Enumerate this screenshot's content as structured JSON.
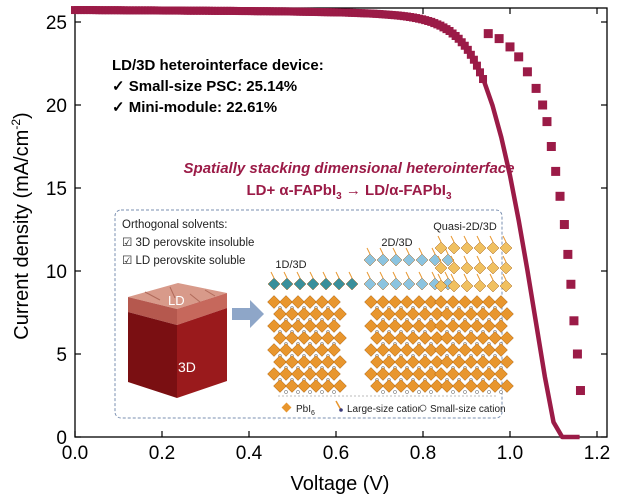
{
  "chart_data": {
    "type": "line",
    "title": "",
    "xlabel": "Voltage (V)",
    "ylabel": "Current density (mA/cm",
    "ylabel_sup": "-2",
    "ylabel_end": ")",
    "xlim": [
      0.0,
      1.22
    ],
    "ylim": [
      0,
      25.9
    ],
    "xticks": [
      "0.0",
      "0.2",
      "0.4",
      "0.6",
      "0.8",
      "1.0",
      "1.2"
    ],
    "xtick_values": [
      0.0,
      0.2,
      0.4,
      0.6,
      0.8,
      1.0,
      1.2
    ],
    "yticks": [
      "0",
      "5",
      "10",
      "15",
      "20",
      "25"
    ],
    "ytick_values": [
      0,
      5,
      10,
      15,
      20,
      25
    ],
    "grid": false,
    "series": [
      {
        "name": "LD/3D heterointerface device",
        "color": "#9b1b47",
        "marker": "square",
        "x": [
          0.0,
          0.02,
          0.04,
          0.06,
          0.08,
          0.1,
          0.12,
          0.14,
          0.16,
          0.18,
          0.2,
          0.22,
          0.24,
          0.26,
          0.28,
          0.3,
          0.32,
          0.34,
          0.36,
          0.38,
          0.4,
          0.42,
          0.44,
          0.46,
          0.48,
          0.5,
          0.52,
          0.54,
          0.56,
          0.58,
          0.6,
          0.62,
          0.64,
          0.66,
          0.68,
          0.7,
          0.72,
          0.74,
          0.76,
          0.78,
          0.8,
          0.82,
          0.84,
          0.86,
          0.88,
          0.9,
          0.92,
          0.94,
          0.96,
          0.98,
          1.0,
          1.02,
          1.04,
          1.06,
          1.08,
          1.1,
          1.12,
          1.13,
          1.14,
          1.15,
          1.16
        ],
        "y": [
          25.72,
          25.72,
          25.72,
          25.71,
          25.71,
          25.71,
          25.7,
          25.7,
          25.7,
          25.7,
          25.69,
          25.69,
          25.69,
          25.68,
          25.68,
          25.68,
          25.67,
          25.67,
          25.67,
          25.66,
          25.66,
          25.65,
          25.65,
          25.64,
          25.64,
          25.63,
          25.62,
          25.61,
          25.6,
          25.59,
          25.58,
          25.57,
          25.55,
          25.53,
          25.51,
          25.48,
          25.44,
          25.4,
          25.34,
          25.26,
          25.15,
          25.0,
          24.78,
          24.48,
          24.05,
          23.45,
          22.6,
          21.45,
          19.95,
          18.05,
          15.75,
          13.05,
          10.05,
          6.85,
          3.65,
          0.9,
          0.0,
          0.0,
          0.0,
          0.0,
          0.0
        ],
        "marker_x": [
          0.95,
          0.975,
          1.0,
          1.02,
          1.04,
          1.06,
          1.075,
          1.085,
          1.095,
          1.105,
          1.115,
          1.125,
          1.133,
          1.14,
          1.147,
          1.155,
          1.162
        ],
        "marker_y": [
          24.3,
          24.0,
          23.5,
          22.9,
          22.0,
          21.0,
          20.0,
          19.0,
          17.5,
          16.0,
          14.5,
          12.8,
          11.0,
          9.2,
          7.0,
          5.0,
          2.8
        ]
      }
    ],
    "annotations": {
      "device_title": "LD/3D heterointerface device:",
      "line1": "✓ Small-size PSC: 25.14%",
      "line2": "✓ Mini-module: 22.61%",
      "subtitle_italic": "Spatially stacking dimensional heterointerface",
      "reaction": "LD+ α-FAPbI",
      "reaction_sub": "3",
      "reaction_arrow": " → LD/α-FAPbI",
      "reaction_sub2": "3"
    }
  },
  "inset": {
    "solvents_title": "Orthogonal solvents:",
    "solvent1": "☑ 3D perovskite insoluble",
    "solvent2": "☑ LD perovskite soluble",
    "cube_top_label": "LD",
    "cube_body_label": "3D",
    "structures": [
      "1D/3D",
      "2D/3D",
      "Quasi-2D/3D"
    ],
    "legend": {
      "pbi6": "PbI",
      "pbi6_sub": "6",
      "large_cation": "Large-size cation",
      "small_cation": "Small-size cation"
    },
    "colors": {
      "octahedron": "#e8962e",
      "layer_1d": "#3a8f9b",
      "layer_2d": "#8cc4e0",
      "layer_quasi": "#f0c060",
      "border": "#7a8fb0",
      "cube": "#8b1a1a"
    }
  }
}
